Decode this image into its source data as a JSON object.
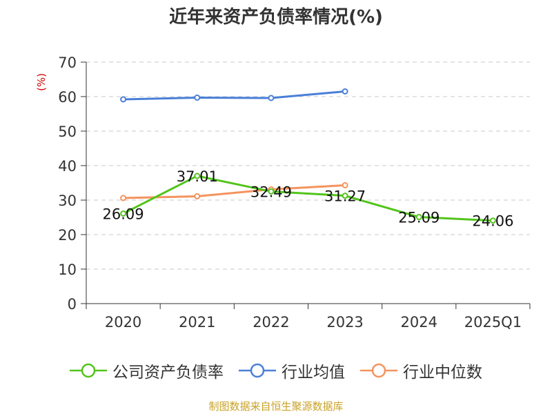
{
  "title": "近年来资产负债率情况(%)",
  "unit": "(%)",
  "source": "制图数据来自恒生聚源数据库",
  "chart_data": {
    "type": "line",
    "categories": [
      "2020",
      "2021",
      "2022",
      "2023",
      "2024",
      "2025Q1"
    ],
    "ylim": [
      0,
      70
    ],
    "yticks": [
      0,
      10,
      20,
      30,
      40,
      50,
      60,
      70
    ],
    "grid": true,
    "legend_position": "bottom",
    "series": [
      {
        "name": "公司资产负债率",
        "color": "#52c41a",
        "values": [
          26.09,
          37.01,
          32.49,
          31.27,
          25.09,
          24.06
        ],
        "labels": [
          "26.09",
          "37.01",
          "32.49",
          "31.27",
          "25.09",
          "24.06"
        ]
      },
      {
        "name": "行业均值",
        "color": "#4a7fd8",
        "values": [
          59.2,
          59.7,
          59.6,
          61.5,
          null,
          null
        ]
      },
      {
        "name": "行业中位数",
        "color": "#f4935d",
        "values": [
          30.6,
          31.1,
          33.1,
          34.3,
          null,
          null
        ]
      }
    ]
  }
}
